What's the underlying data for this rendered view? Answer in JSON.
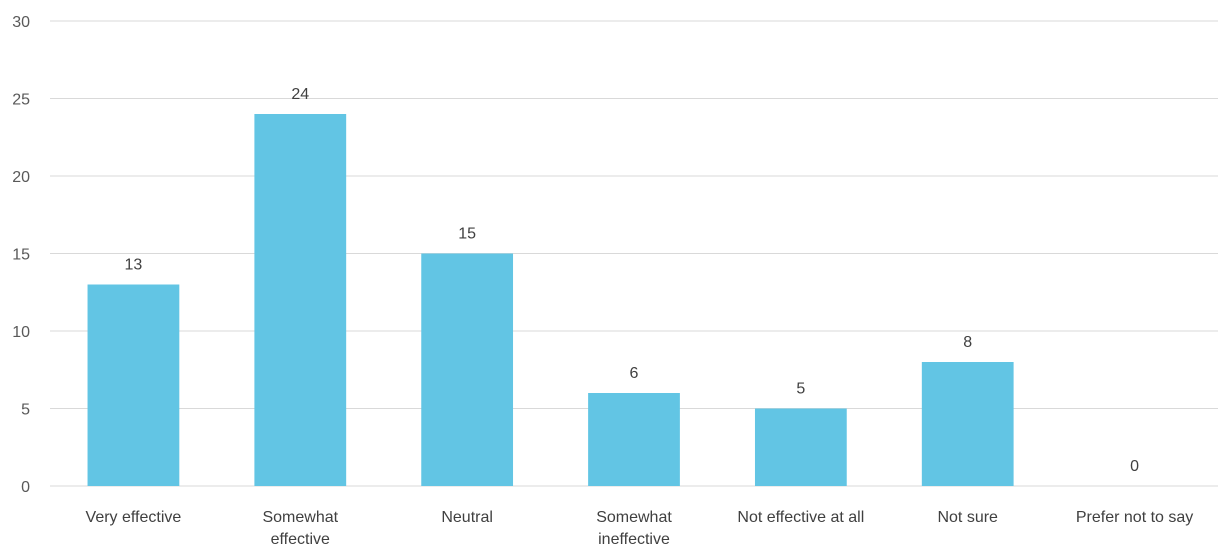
{
  "chart_data": {
    "type": "bar",
    "categories": [
      [
        "Very effective"
      ],
      [
        "Somewhat",
        "effective"
      ],
      [
        "Neutral"
      ],
      [
        "Somewhat",
        "ineffective"
      ],
      [
        "Not effective at all"
      ],
      [
        "Not sure"
      ],
      [
        "Prefer not to say"
      ]
    ],
    "values": [
      13,
      24,
      15,
      6,
      5,
      8,
      0
    ],
    "data_labels": [
      "13",
      "24",
      "15",
      "6",
      "5",
      "8",
      "0"
    ],
    "y_ticks": [
      "0",
      "5",
      "10",
      "15",
      "20",
      "25",
      "30"
    ],
    "ylim": [
      0,
      30
    ],
    "y_tick_step": 5,
    "grid": true,
    "legend": false,
    "bar_color": "#62c5e4",
    "title": "",
    "xlabel": "",
    "ylabel": ""
  }
}
